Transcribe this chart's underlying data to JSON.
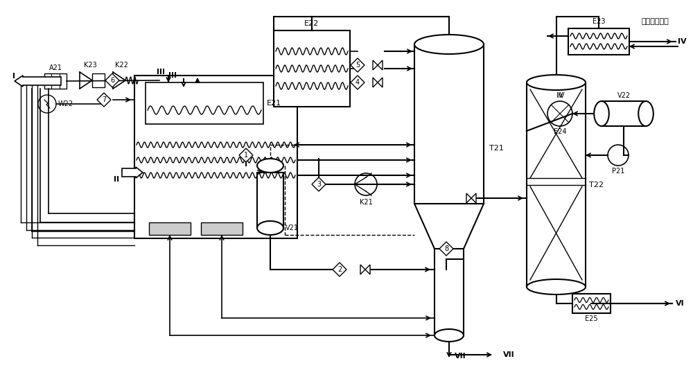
{
  "bg_color": "#ffffff",
  "line_color": "#000000",
  "fig_width": 10.0,
  "fig_height": 5.34,
  "label_E22": "E22",
  "label_E21": "E21",
  "label_E23": "E23",
  "label_E24": "E24",
  "label_E25": "E25",
  "label_K21": "K21",
  "label_K22": "K22",
  "label_K23": "K23",
  "label_A21": "A21",
  "label_W22": "W22",
  "label_V21": "V21",
  "label_V22": "V22",
  "label_T21": "T21",
  "label_T22": "T22",
  "label_P21": "P21",
  "label_I": "I",
  "label_II": "II",
  "label_III": "III",
  "label_IV_stream": "IV",
  "label_VI": "VI",
  "label_VII": "VII",
  "label_chinese": "高温液态丙烷"
}
